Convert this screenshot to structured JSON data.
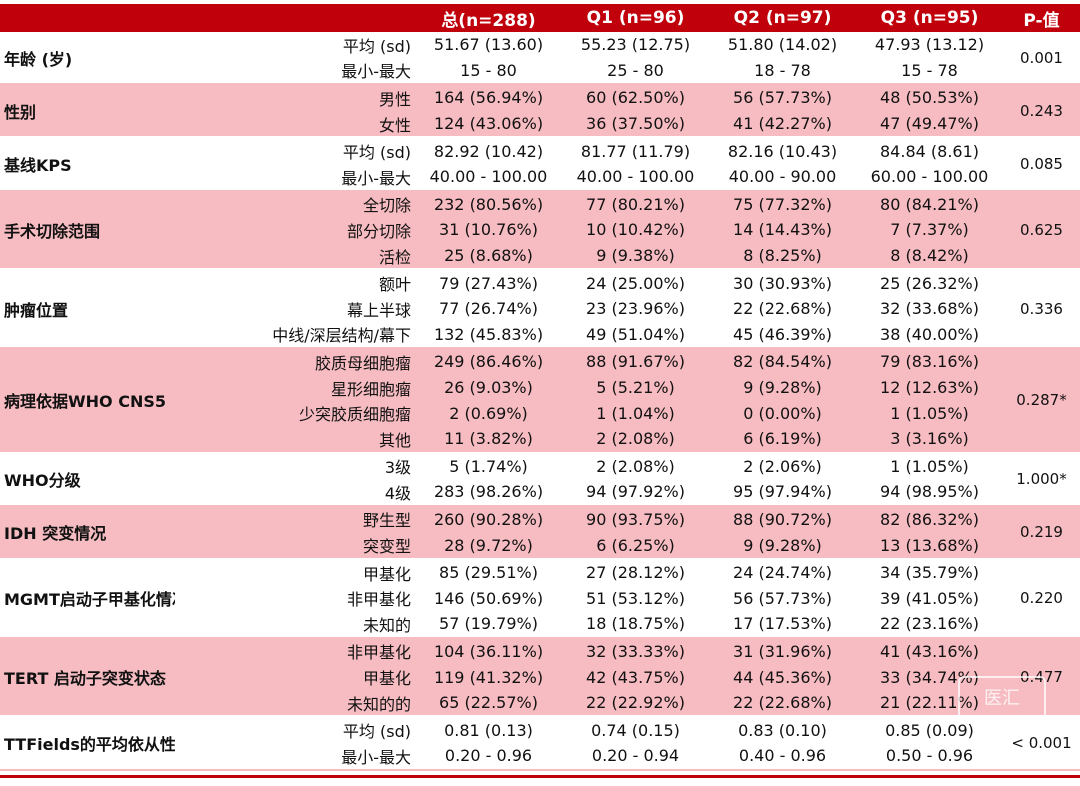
{
  "header": [
    "",
    "",
    "总(n=288)",
    "Q1 (n=96)",
    "Q2 (n=97)",
    "Q3 (n=95)",
    "P-值"
  ],
  "groups": [
    {
      "name": "年龄 (岁)",
      "p": "0.001",
      "shade": "white",
      "rows": [
        {
          "label": "平均 (sd)",
          "values": [
            "51.67 (13.60)",
            "55.23 (12.75)",
            "51.80 (14.02)",
            "47.93 (13.12)"
          ]
        },
        {
          "label": "最小-最大",
          "values": [
            "15 - 80",
            "25 - 80",
            "18 - 78",
            "15 - 78"
          ]
        }
      ]
    },
    {
      "name": "性别",
      "p": "0.243",
      "shade": "pink",
      "rows": [
        {
          "label": "男性",
          "values": [
            "164 (56.94%)",
            "60 (62.50%)",
            "56 (57.73%)",
            "48 (50.53%)"
          ]
        },
        {
          "label": "女性",
          "values": [
            "124 (43.06%)",
            "36 (37.50%)",
            "41 (42.27%)",
            "47 (49.47%)"
          ]
        }
      ]
    },
    {
      "name": "基线KPS",
      "p": "0.085",
      "shade": "white",
      "rows": [
        {
          "label": "平均 (sd)",
          "values": [
            "82.92 (10.42)",
            "81.77 (11.79)",
            "82.16 (10.43)",
            "84.84 (8.61)"
          ]
        },
        {
          "label": "最小-最大",
          "values": [
            "40.00 - 100.00",
            "40.00 - 100.00",
            "40.00 - 90.00",
            "60.00 - 100.00"
          ]
        }
      ]
    },
    {
      "name": "手术切除范围",
      "p": "0.625",
      "shade": "pink",
      "rows": [
        {
          "label": "全切除",
          "values": [
            "232 (80.56%)",
            "77 (80.21%)",
            "75 (77.32%)",
            "80 (84.21%)"
          ]
        },
        {
          "label": "部分切除",
          "values": [
            "31 (10.76%)",
            "10 (10.42%)",
            "14 (14.43%)",
            "7 (7.37%)"
          ]
        },
        {
          "label": "活检",
          "values": [
            "25 (8.68%)",
            "9 (9.38%)",
            "8 (8.25%)",
            "8 (8.42%)"
          ]
        }
      ]
    },
    {
      "name": "肿瘤位置",
      "p": "0.336",
      "shade": "white",
      "rows": [
        {
          "label": "额叶",
          "values": [
            "79 (27.43%)",
            "24 (25.00%)",
            "30 (30.93%)",
            "25 (26.32%)"
          ]
        },
        {
          "label": "幕上半球",
          "values": [
            "77 (26.74%)",
            "23 (23.96%)",
            "22 (22.68%)",
            "32 (33.68%)"
          ]
        },
        {
          "label": "中线/深层结构/幕下",
          "values": [
            "132 (45.83%)",
            "49 (51.04%)",
            "45 (46.39%)",
            "38 (40.00%)"
          ]
        }
      ]
    },
    {
      "name": "病理依据WHO CNS5",
      "p": "0.287*",
      "shade": "pink",
      "rows": [
        {
          "label": "胶质母细胞瘤",
          "values": [
            "249 (86.46%)",
            "88 (91.67%)",
            "82 (84.54%)",
            "79 (83.16%)"
          ]
        },
        {
          "label": "星形细胞瘤",
          "values": [
            "26 (9.03%)",
            "5 (5.21%)",
            "9 (9.28%)",
            "12 (12.63%)"
          ]
        },
        {
          "label": "少突胶质细胞瘤",
          "values": [
            "2 (0.69%)",
            "1 (1.04%)",
            "0 (0.00%)",
            "1 (1.05%)"
          ]
        },
        {
          "label": "其他",
          "values": [
            "11 (3.82%)",
            "2 (2.08%)",
            "6 (6.19%)",
            "3 (3.16%)"
          ]
        }
      ]
    },
    {
      "name": "WHO分级",
      "p": "1.000*",
      "shade": "white",
      "rows": [
        {
          "label": "3级",
          "values": [
            "5 (1.74%)",
            "2 (2.08%)",
            "2 (2.06%)",
            "1 (1.05%)"
          ]
        },
        {
          "label": "4级",
          "values": [
            "283 (98.26%)",
            "94 (97.92%)",
            "95 (97.94%)",
            "94 (98.95%)"
          ]
        }
      ]
    },
    {
      "name": "IDH 突变情况",
      "p": "0.219",
      "shade": "pink",
      "rows": [
        {
          "label": "野生型",
          "values": [
            "260 (90.28%)",
            "90 (93.75%)",
            "88 (90.72%)",
            "82 (86.32%)"
          ]
        },
        {
          "label": "突变型",
          "values": [
            "28 (9.72%)",
            "6 (6.25%)",
            "9 (9.28%)",
            "13 (13.68%)"
          ]
        }
      ]
    },
    {
      "name": "MGMT启动子甲基化情况",
      "p": "0.220",
      "shade": "white",
      "rows": [
        {
          "label": "甲基化",
          "values": [
            "85 (29.51%)",
            "27 (28.12%)",
            "24 (24.74%)",
            "34 (35.79%)"
          ]
        },
        {
          "label": "非甲基化",
          "values": [
            "146 (50.69%)",
            "51 (53.12%)",
            "56 (57.73%)",
            "39 (41.05%)"
          ]
        },
        {
          "label": "未知的",
          "values": [
            "57 (19.79%)",
            "18 (18.75%)",
            "17 (17.53%)",
            "22 (23.16%)"
          ]
        }
      ]
    },
    {
      "name": "TERT 启动子突变状态",
      "p": "0.477",
      "shade": "pink",
      "rows": [
        {
          "label": "非甲基化",
          "values": [
            "104 (36.11%)",
            "32 (33.33%)",
            "31 (31.96%)",
            "41 (43.16%)"
          ]
        },
        {
          "label": "甲基化",
          "values": [
            "119 (41.32%)",
            "42 (43.75%)",
            "44 (45.36%)",
            "33 (34.74%)"
          ]
        },
        {
          "label": "未知的的",
          "values": [
            "65 (22.57%)",
            "22 (22.92%)",
            "22 (22.68%)",
            "21 (22.11%)"
          ]
        }
      ]
    },
    {
      "name": "TTFields的平均依从性",
      "p": "< 0.001",
      "shade": "white",
      "rows": [
        {
          "label": "平均 (sd)",
          "values": [
            "0.81 (0.13)",
            "0.74 (0.15)",
            "0.83 (0.10)",
            "0.85 (0.09)"
          ]
        },
        {
          "label": "最小-最大",
          "values": [
            "0.20 - 0.96",
            "0.20 - 0.94",
            "0.40 - 0.96",
            "0.50 - 0.96"
          ]
        }
      ]
    }
  ],
  "watermark": "医汇"
}
